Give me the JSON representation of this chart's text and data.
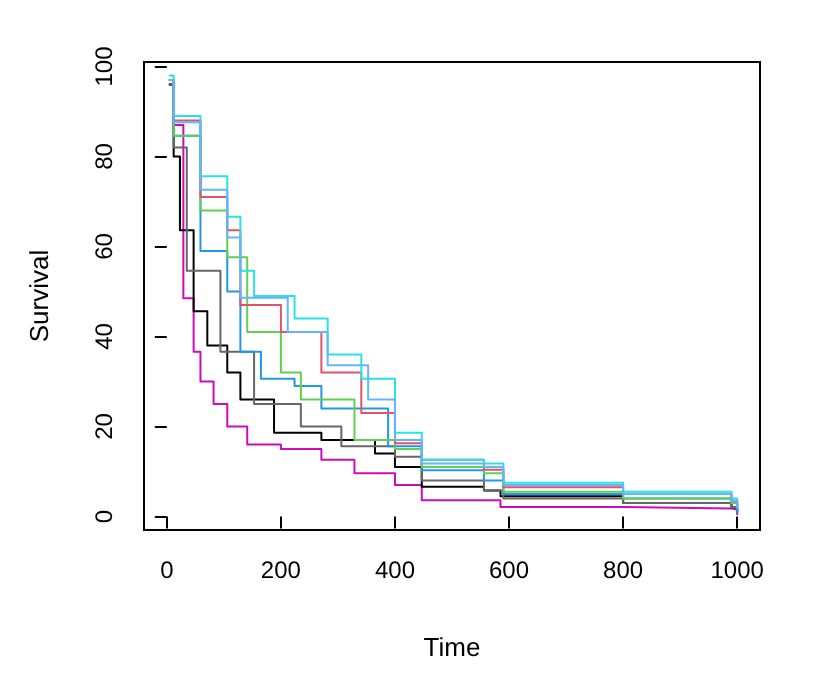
{
  "chart_data": {
    "type": "step",
    "xlabel": "Time",
    "ylabel": "Survival",
    "xlim": [
      -40,
      1040
    ],
    "ylim": [
      -3,
      101
    ],
    "xticks": [
      0,
      200,
      400,
      600,
      800,
      1000
    ],
    "yticks": [
      0,
      20,
      40,
      60,
      80,
      100
    ],
    "grid": false,
    "marker": "none",
    "line_style": "solid",
    "series": [
      {
        "color": "#cd0bbc",
        "x": [
          5,
          12,
          29,
          47,
          59,
          82,
          106,
          141,
          200,
          271,
          329,
          400,
          447,
          556,
          585,
          800,
          990,
          1000
        ],
        "values": [
          96,
          87,
          48.5,
          36.6,
          30,
          25,
          20,
          16,
          15,
          12.6,
          9.6,
          7,
          3.6,
          3.6,
          2.1,
          1.8,
          1.5,
          0.5
        ]
      },
      {
        "color": "#000000",
        "x": [
          5,
          12,
          23,
          47,
          71,
          106,
          129,
          188,
          271,
          365,
          400,
          447,
          556,
          585,
          800,
          990,
          1000
        ],
        "values": [
          96,
          80,
          63.6,
          45.6,
          38,
          32,
          26,
          18.6,
          17,
          14,
          11,
          6.6,
          5.8,
          4.5,
          3,
          2,
          1
        ]
      },
      {
        "color": "#666666",
        "x": [
          5,
          12,
          35,
          94,
          153,
          235,
          306,
          400,
          447,
          556,
          590,
          800,
          990,
          1000
        ],
        "values": [
          96,
          82,
          54.6,
          36.6,
          25,
          20,
          15.6,
          13.3,
          8,
          5.8,
          4,
          3,
          2,
          1
        ]
      },
      {
        "color": "#2297e6",
        "x": [
          5,
          12,
          59,
          106,
          129,
          165,
          224,
          271,
          388,
          447,
          556,
          590,
          800,
          990,
          1000
        ],
        "values": [
          97,
          84.6,
          59,
          50,
          36.6,
          30.6,
          29,
          24,
          15.6,
          10.3,
          8,
          5,
          4,
          3,
          1
        ]
      },
      {
        "color": "#61d04f",
        "x": [
          5,
          12,
          59,
          106,
          141,
          200,
          235,
          329,
          400,
          447,
          556,
          590,
          800,
          990,
          1000
        ],
        "values": [
          97,
          84.6,
          68,
          57.6,
          41,
          32,
          26,
          17,
          15,
          11,
          9.6,
          5.5,
          4,
          3,
          2
        ]
      },
      {
        "color": "#df536b",
        "x": [
          5,
          12,
          59,
          106,
          129,
          200,
          271,
          341,
          400,
          447,
          556,
          590,
          800,
          990,
          1000
        ],
        "values": [
          97,
          88,
          71,
          63.6,
          47,
          41,
          32,
          23,
          16.3,
          12.6,
          10.4,
          6.5,
          5,
          3.5,
          2
        ]
      },
      {
        "color": "#28e2e5",
        "x": [
          5,
          12,
          59,
          106,
          129,
          153,
          224,
          282,
          341,
          400,
          447,
          556,
          590,
          800,
          990,
          1000
        ],
        "values": [
          98,
          89,
          75.6,
          66.6,
          54.6,
          49,
          44,
          36,
          30.6,
          18.6,
          12.6,
          11.8,
          7.5,
          5.5,
          4,
          3
        ]
      },
      {
        "color": "#66b3ff",
        "x": [
          5,
          12,
          59,
          106,
          129,
          212,
          282,
          353,
          400,
          447,
          556,
          590,
          800,
          990,
          1000
        ],
        "values": [
          97,
          87.6,
          72.6,
          62,
          48.6,
          41,
          33.6,
          26,
          17,
          11.8,
          11,
          7,
          5,
          3.5,
          2
        ]
      }
    ]
  }
}
